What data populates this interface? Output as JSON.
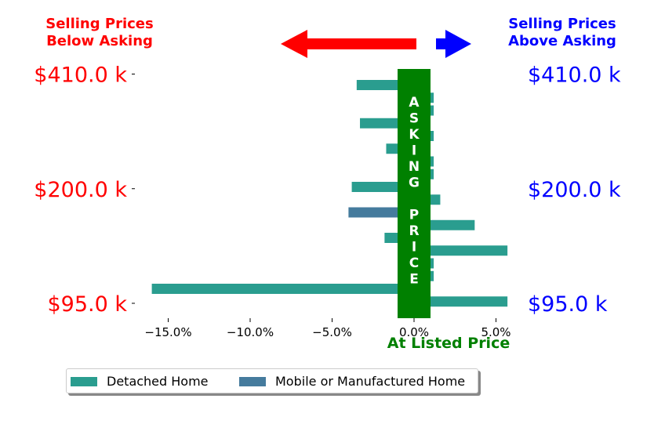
{
  "header": {
    "left_line1": "Selling Prices",
    "left_line2": "Below Asking",
    "right_line1": "Selling Prices",
    "right_line2": "Above Asking"
  },
  "colors": {
    "below": "#ff0000",
    "above": "#0000ff",
    "asking": "#008000",
    "detached": "#2a9d8f",
    "mobile": "#457b9d"
  },
  "asking_band": {
    "letters": [
      "A",
      "S",
      "K",
      "I",
      "N",
      "G",
      "",
      "P",
      "R",
      "I",
      "C",
      "E"
    ],
    "xlabel": "At Listed Price"
  },
  "legend": [
    {
      "name": "Detached Home",
      "color": "#2a9d8f"
    },
    {
      "name": "Mobile or Manufactured Home",
      "color": "#457b9d"
    }
  ],
  "chart_data": {
    "type": "bar",
    "orientation": "horizontal",
    "xlim": [
      -17,
      6
    ],
    "x_ticks": [
      -15,
      -10,
      -5,
      0,
      5
    ],
    "x_tick_labels": [
      "−15.0%",
      "−10.0%",
      "−5.0%",
      "0.0%",
      "5.0%"
    ],
    "y_tick_labels_left": [
      "$410.0 k",
      "$200.0 k",
      "$95.0 k"
    ],
    "y_tick_labels_right": [
      "$410.0 k",
      "$200.0 k",
      "$95.0 k"
    ],
    "y_tick_rows": [
      0,
      9,
      18
    ],
    "xlabel": "At Listed Price",
    "series": [
      {
        "name": "Detached Home",
        "color": "#2a9d8f"
      },
      {
        "name": "Mobile or Manufactured Home",
        "color": "#457b9d"
      }
    ],
    "bars": [
      {
        "row": 0,
        "value": -3.5,
        "series": 0
      },
      {
        "row": 1,
        "value": 1.2,
        "series": 0
      },
      {
        "row": 2,
        "value": 1.2,
        "series": 0
      },
      {
        "row": 3,
        "value": -3.3,
        "series": 0
      },
      {
        "row": 4,
        "value": 1.2,
        "series": 0
      },
      {
        "row": 5,
        "value": -1.7,
        "series": 0
      },
      {
        "row": 6,
        "value": 1.2,
        "series": 0
      },
      {
        "row": 7,
        "value": 1.2,
        "series": 0
      },
      {
        "row": 8,
        "value": -3.8,
        "series": 0
      },
      {
        "row": 9,
        "value": 1.6,
        "series": 0
      },
      {
        "row": 10,
        "value": -4.0,
        "series": 1
      },
      {
        "row": 11,
        "value": 3.7,
        "series": 0
      },
      {
        "row": 12,
        "value": -1.8,
        "series": 0
      },
      {
        "row": 13,
        "value": 5.7,
        "series": 0
      },
      {
        "row": 14,
        "value": 1.2,
        "series": 0
      },
      {
        "row": 15,
        "value": 1.2,
        "series": 0
      },
      {
        "row": 16,
        "value": -16.0,
        "series": 0
      },
      {
        "row": 17,
        "value": 5.7,
        "series": 0
      }
    ]
  }
}
